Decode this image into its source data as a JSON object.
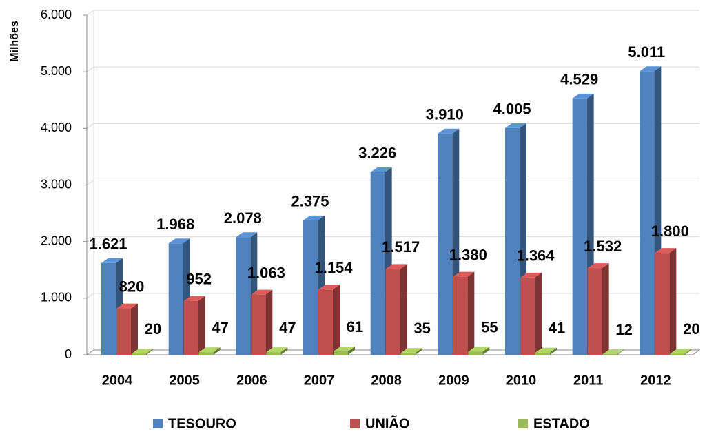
{
  "chart_data": {
    "type": "bar3d",
    "y_axis_label": "Milhões",
    "categories": [
      "2004",
      "2005",
      "2006",
      "2007",
      "2008",
      "2009",
      "2010",
      "2011",
      "2012"
    ],
    "series": [
      {
        "name": "TESOURO",
        "color": "#4f81bd",
        "values": [
          1621,
          1968,
          2078,
          2375,
          3226,
          3910,
          4005,
          4529,
          5011
        ],
        "value_labels": [
          "1.621",
          "1.968",
          "2.078",
          "2.375",
          "3.226",
          "3.910",
          "4.005",
          "4.529",
          "5.011"
        ]
      },
      {
        "name": "UNIÃO",
        "color": "#c0504d",
        "values": [
          820,
          952,
          1063,
          1154,
          1517,
          1380,
          1364,
          1532,
          1800
        ],
        "value_labels": [
          "820",
          "952",
          "1.063",
          "1.154",
          "1.517",
          "1.380",
          "1.364",
          "1.532",
          "1.800"
        ]
      },
      {
        "name": "ESTADO",
        "color": "#9bbb59",
        "values": [
          20,
          47,
          47,
          61,
          35,
          55,
          41,
          12,
          20
        ]
      }
    ],
    "ylim": [
      0,
      6000
    ],
    "yticks": [
      0,
      {
        "value": 1000,
        "label": "1.000"
      },
      {
        "value": 2000,
        "label": "2.000"
      },
      {
        "value": 3000,
        "label": "3.000"
      },
      {
        "value": 4000,
        "label": "4.000"
      },
      {
        "value": 5000,
        "label": "5.000"
      },
      {
        "value": 6000,
        "label": "6.000"
      }
    ],
    "grid": true,
    "legend": "bottom"
  }
}
